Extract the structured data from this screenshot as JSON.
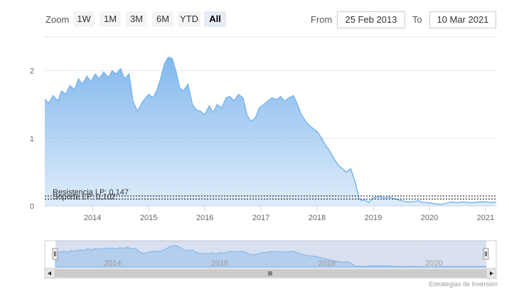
{
  "range_selector": {
    "zoom_label": "Zoom",
    "buttons": [
      "1W",
      "1M",
      "3M",
      "6M",
      "YTD",
      "All"
    ],
    "active": "All",
    "from_label": "From",
    "from_value": "25 Feb 2013",
    "to_label": "To",
    "to_value": "10 Mar 2021"
  },
  "chart_data": {
    "type": "area",
    "title": "",
    "xlabel": "",
    "ylabel": "",
    "x_ticks": [
      "2014",
      "2015",
      "2016",
      "2017",
      "2018",
      "2019",
      "2020",
      "2021"
    ],
    "y_ticks": [
      "0",
      "1",
      "2"
    ],
    "ylim": [
      0,
      2.5
    ],
    "xlim": [
      2013.15,
      2021.19
    ],
    "grid": "horizontal",
    "series": [
      {
        "x": [
          2013.15,
          2013.22,
          2013.3,
          2013.38,
          2013.45,
          2013.52,
          2013.6,
          2013.68,
          2013.75,
          2013.82,
          2013.9,
          2013.97,
          2014.05,
          2014.12,
          2014.2,
          2014.28,
          2014.35,
          2014.42,
          2014.5,
          2014.57,
          2014.65,
          2014.72,
          2014.8,
          2014.9,
          2015.0,
          2015.08,
          2015.15,
          2015.22,
          2015.28,
          2015.35,
          2015.42,
          2015.5,
          2015.55,
          2015.62,
          2015.7,
          2015.78,
          2015.85,
          2015.92,
          2016.0,
          2016.08,
          2016.15,
          2016.22,
          2016.3,
          2016.38,
          2016.45,
          2016.52,
          2016.6,
          2016.68,
          2016.75,
          2016.82,
          2016.9,
          2016.97,
          2017.05,
          2017.12,
          2017.2,
          2017.28,
          2017.35,
          2017.42,
          2017.5,
          2017.58,
          2017.65,
          2017.72,
          2017.8,
          2017.85,
          2017.92,
          2018.0,
          2018.08,
          2018.15,
          2018.22,
          2018.3,
          2018.38,
          2018.45,
          2018.52,
          2018.6,
          2018.68,
          2018.75,
          2018.8,
          2018.85,
          2018.92,
          2019.0,
          2019.1,
          2019.2,
          2019.3,
          2019.4,
          2019.5,
          2019.6,
          2019.7,
          2019.8,
          2019.88,
          2019.95,
          2020.05,
          2020.12,
          2020.2,
          2020.3,
          2020.4,
          2020.5,
          2020.6,
          2020.7,
          2020.8,
          2020.9,
          2021.0,
          2021.1,
          2021.19
        ],
        "values": [
          1.58,
          1.52,
          1.63,
          1.55,
          1.7,
          1.65,
          1.78,
          1.72,
          1.88,
          1.8,
          1.92,
          1.84,
          1.95,
          1.88,
          1.98,
          1.9,
          2.0,
          1.95,
          2.03,
          1.88,
          1.95,
          1.55,
          1.4,
          1.55,
          1.65,
          1.6,
          1.72,
          1.9,
          2.1,
          2.2,
          2.18,
          1.95,
          1.75,
          1.7,
          1.8,
          1.5,
          1.42,
          1.4,
          1.35,
          1.48,
          1.38,
          1.5,
          1.45,
          1.6,
          1.62,
          1.55,
          1.65,
          1.6,
          1.35,
          1.25,
          1.3,
          1.45,
          1.5,
          1.55,
          1.6,
          1.57,
          1.62,
          1.55,
          1.6,
          1.63,
          1.5,
          1.35,
          1.25,
          1.2,
          1.15,
          1.1,
          1.0,
          0.9,
          0.82,
          0.7,
          0.6,
          0.55,
          0.5,
          0.55,
          0.35,
          0.1,
          0.08,
          0.09,
          0.05,
          0.12,
          0.14,
          0.12,
          0.13,
          0.1,
          0.08,
          0.06,
          0.06,
          0.08,
          0.05,
          0.05,
          0.04,
          0.03,
          0.02,
          0.04,
          0.06,
          0.05,
          0.06,
          0.05,
          0.05,
          0.06,
          0.06,
          0.05,
          0.06
        ]
      }
    ],
    "color": "#7cb5ec",
    "annotations": [
      {
        "label": "Resistencia LP: 0,147",
        "value": 0.147
      },
      {
        "label": "Soporte LP: 0,102",
        "value": 0.102
      }
    ],
    "navigator": {
      "x_ticks": [
        "2014",
        "2016",
        "2018",
        "2020"
      ]
    }
  },
  "credit": "Estrategias de Inversión"
}
